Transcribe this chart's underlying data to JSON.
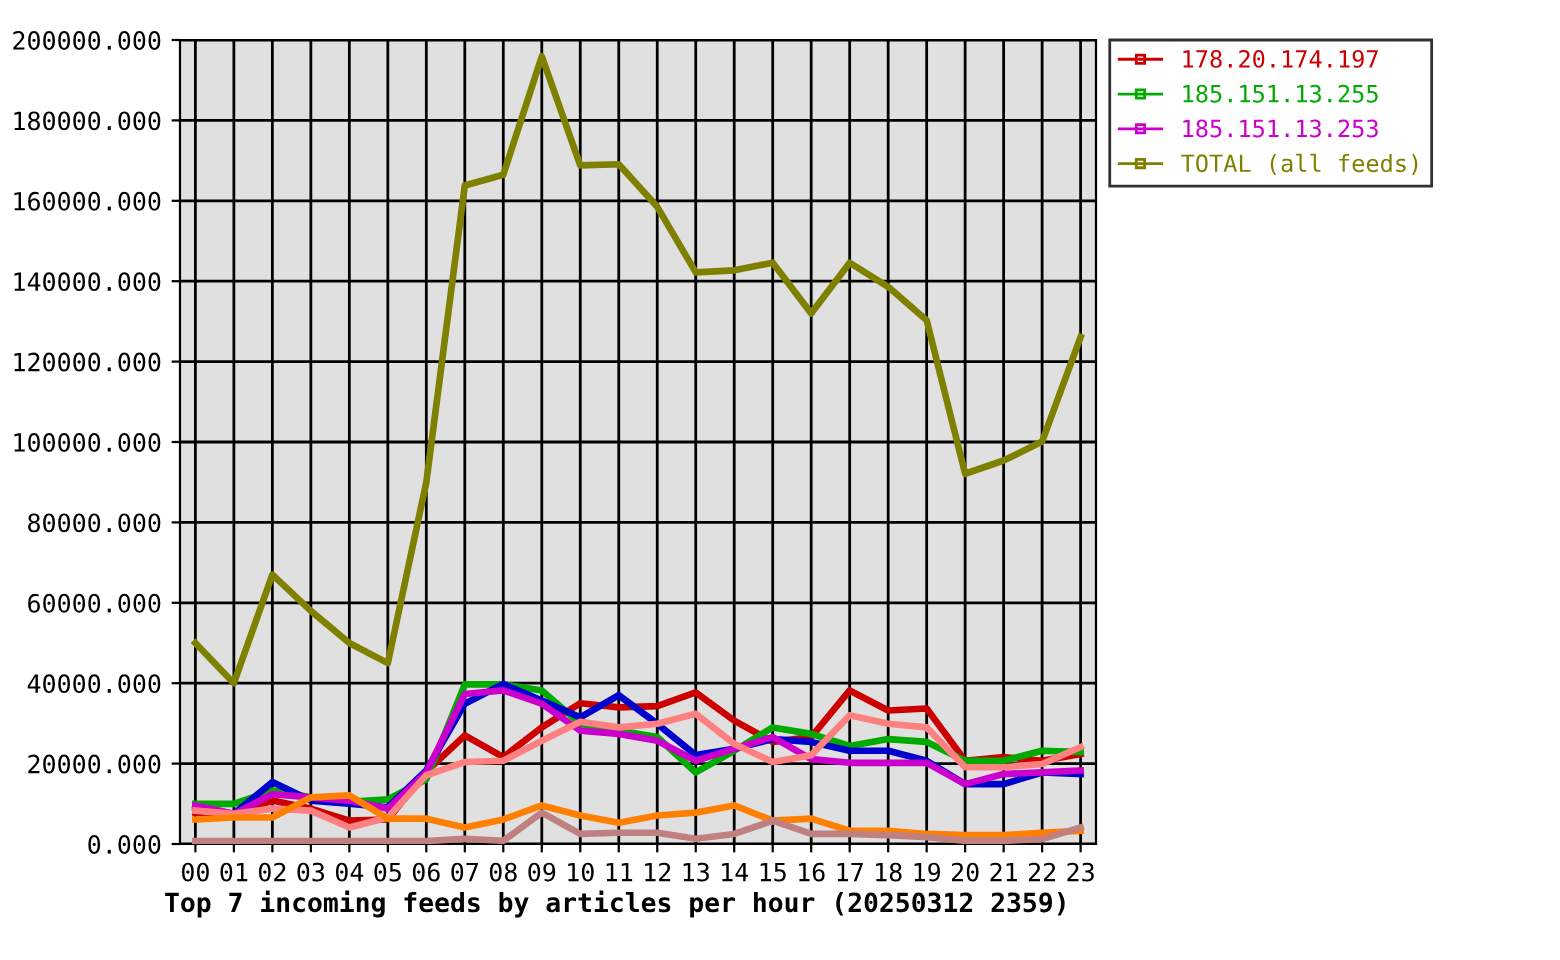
{
  "chart_data": {
    "type": "line",
    "title": "Top 7 incoming feeds by articles per hour (20250312 2359)",
    "categories": [
      "00",
      "01",
      "02",
      "03",
      "04",
      "05",
      "06",
      "07",
      "08",
      "09",
      "10",
      "11",
      "12",
      "13",
      "14",
      "15",
      "16",
      "17",
      "18",
      "19",
      "20",
      "21",
      "22",
      "23"
    ],
    "series": [
      {
        "name": "178.20.174.197",
        "color": "#cc0000",
        "values": [
          7800,
          7500,
          10800,
          8800,
          5800,
          6100,
          18000,
          27000,
          21600,
          29000,
          35000,
          34000,
          34300,
          37700,
          30700,
          25400,
          26600,
          38200,
          33200,
          33700,
          20700,
          21600,
          20700,
          22400
        ]
      },
      {
        "name": "185.151.13.255",
        "color": "#00aa00",
        "values": [
          10000,
          10000,
          13300,
          11600,
          10500,
          11100,
          16100,
          39700,
          39700,
          38200,
          29900,
          28200,
          26600,
          17800,
          23200,
          29000,
          27400,
          24400,
          26100,
          25400,
          20700,
          20700,
          23200,
          22900
        ]
      },
      {
        "color": "#0000cc",
        "values": [
          9100,
          7500,
          15400,
          10800,
          10000,
          9100,
          18300,
          34900,
          39800,
          35700,
          31500,
          37000,
          29900,
          22100,
          23700,
          26100,
          25400,
          23200,
          23200,
          20700,
          14900,
          14900,
          17800,
          17400
        ]
      },
      {
        "name": "185.151.13.253",
        "color": "#cc00cc",
        "values": [
          9600,
          7500,
          12400,
          11600,
          10800,
          8800,
          17800,
          37300,
          38200,
          34900,
          28200,
          27400,
          25700,
          20700,
          23700,
          26600,
          21100,
          20200,
          20200,
          20200,
          14900,
          17400,
          17800,
          18300
        ]
      },
      {
        "color": "#ff8080",
        "values": [
          8300,
          7500,
          8800,
          8300,
          4100,
          6600,
          17100,
          20400,
          20700,
          25700,
          30400,
          29000,
          29900,
          32400,
          24900,
          20400,
          22100,
          32000,
          29900,
          29000,
          19100,
          19100,
          19900,
          24100
        ]
      },
      {
        "color": "#ff8000",
        "values": [
          6100,
          6600,
          6600,
          11600,
          12100,
          6300,
          6300,
          4100,
          6100,
          9600,
          7100,
          5300,
          7100,
          7800,
          9600,
          5800,
          6300,
          3300,
          3300,
          2500,
          2200,
          2200,
          2800,
          3300
        ]
      },
      {
        "color": "#c08080",
        "values": [
          700,
          700,
          700,
          700,
          700,
          700,
          700,
          1300,
          800,
          7800,
          2500,
          2800,
          2800,
          1300,
          2500,
          5800,
          2500,
          2500,
          2200,
          1700,
          800,
          800,
          1200,
          4100
        ]
      },
      {
        "name": "TOTAL (all feeds)",
        "color": "#808000",
        "values": [
          50000,
          40000,
          67000,
          58000,
          50000,
          45000,
          90000,
          163800,
          166500,
          195900,
          168800,
          169100,
          158500,
          142200,
          142700,
          144600,
          132000,
          144600,
          138600,
          130300,
          92100,
          95400,
          100100,
          126100
        ]
      }
    ],
    "ylim": [
      0,
      200000
    ],
    "yticks": [
      {
        "value": 0,
        "label": "0.000"
      },
      {
        "value": 20000,
        "label": "20000.000"
      },
      {
        "value": 40000,
        "label": "40000.000"
      },
      {
        "value": 60000,
        "label": "60000.000"
      },
      {
        "value": 80000,
        "label": "80000.000"
      },
      {
        "value": 100000,
        "label": "100000.000"
      },
      {
        "value": 120000,
        "label": "120000.000"
      },
      {
        "value": 140000,
        "label": "140000.000"
      },
      {
        "value": 160000,
        "label": "160000.000"
      },
      {
        "value": 180000,
        "label": "180000.000"
      },
      {
        "value": 200000,
        "label": "200000.000"
      }
    ],
    "grid": true,
    "legend": "right"
  }
}
